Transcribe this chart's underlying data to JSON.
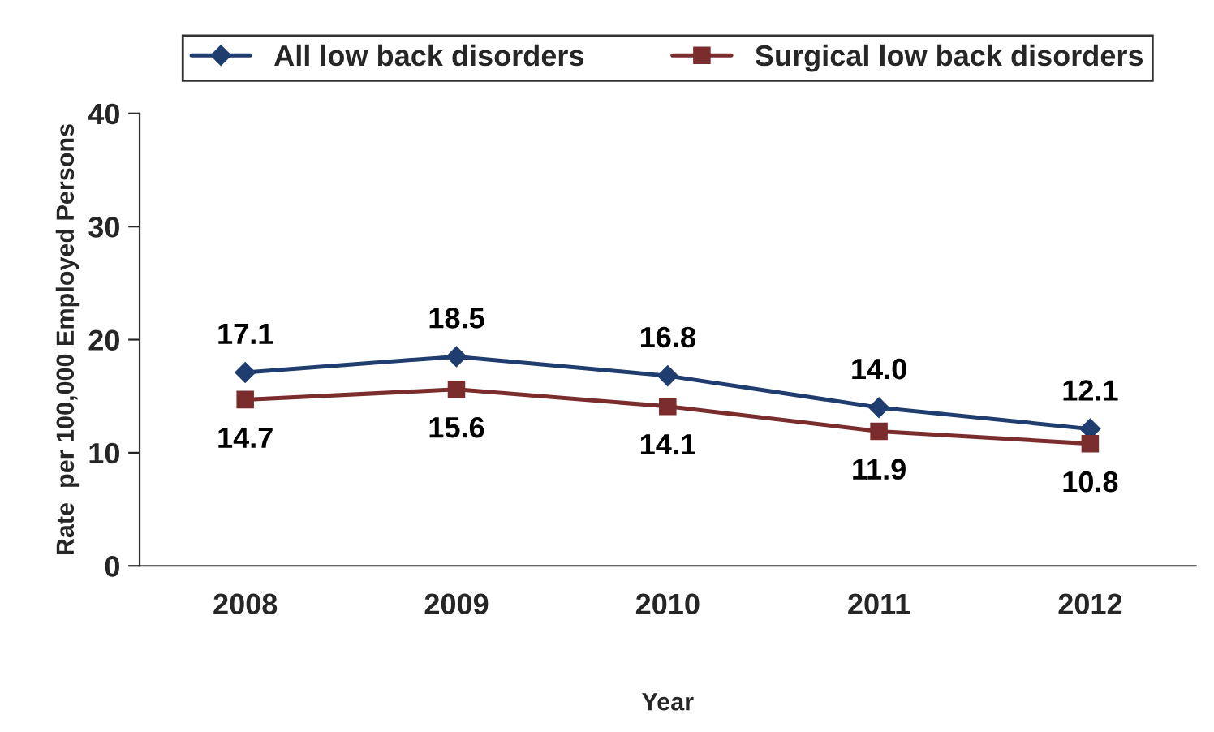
{
  "chart_data": {
    "type": "line",
    "xlabel": "Year",
    "ylabel": "Rate  per 100,000 Employed Persons",
    "categories": [
      "2008",
      "2009",
      "2010",
      "2011",
      "2012"
    ],
    "series": [
      {
        "name": "All low back disorders",
        "color": "#1f3d6f",
        "marker": "diamond",
        "values": [
          17.1,
          18.5,
          16.8,
          14.0,
          12.1
        ],
        "value_labels": [
          "17.1",
          "18.5",
          "16.8",
          "14.0",
          "12.1"
        ]
      },
      {
        "name": "Surgical low back disorders",
        "color": "#7b2c2c",
        "marker": "square",
        "values": [
          14.7,
          15.6,
          14.1,
          11.9,
          10.8
        ],
        "value_labels": [
          "14.7",
          "15.6",
          "14.1",
          "11.9",
          "10.8"
        ]
      }
    ],
    "ylim": [
      0,
      40
    ],
    "yticks": [
      0,
      10,
      20,
      30,
      40
    ],
    "grid": false,
    "legend": "top",
    "line_style": "solid"
  }
}
